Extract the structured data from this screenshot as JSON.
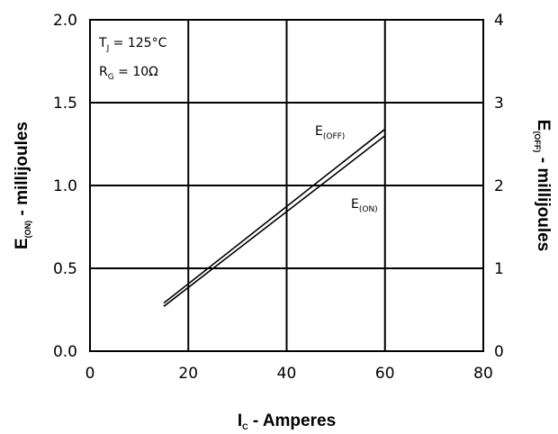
{
  "chart_data": {
    "type": "line",
    "xlabel": {
      "main": "I",
      "sub": "C",
      "rest": " - Amperes"
    },
    "ylabel_left": {
      "main": "E",
      "sub": "(ON)",
      "rest": " - millijoules"
    },
    "ylabel_right": {
      "main": "E",
      "sub": "(OFF)",
      "rest": " - millijoules"
    },
    "xlim": [
      0,
      80
    ],
    "ylim_left": [
      0,
      2.0
    ],
    "ylim_right": [
      0,
      4
    ],
    "x_ticks": [
      "0",
      "20",
      "40",
      "60",
      "80"
    ],
    "y_left_ticks": [
      "0.0",
      "0.5",
      "1.0",
      "1.5",
      "2.0"
    ],
    "y_right_ticks": [
      "0",
      "1",
      "2",
      "3",
      "4"
    ],
    "grid": true,
    "annotations": [
      {
        "main": "T",
        "sub": "J",
        "rest": " = 125°C"
      },
      {
        "main": "R",
        "sub": "G",
        "rest": " = 10Ω"
      }
    ],
    "series": [
      {
        "name": "E(OFF)",
        "label": {
          "main": "E",
          "sub": "(OFF)"
        },
        "axis": "right",
        "x": [
          15,
          60
        ],
        "y": [
          0.58,
          2.68
        ]
      },
      {
        "name": "E(ON)",
        "label": {
          "main": "E",
          "sub": "(ON)"
        },
        "axis": "left",
        "x": [
          15,
          60
        ],
        "y": [
          0.27,
          1.3
        ]
      }
    ]
  }
}
